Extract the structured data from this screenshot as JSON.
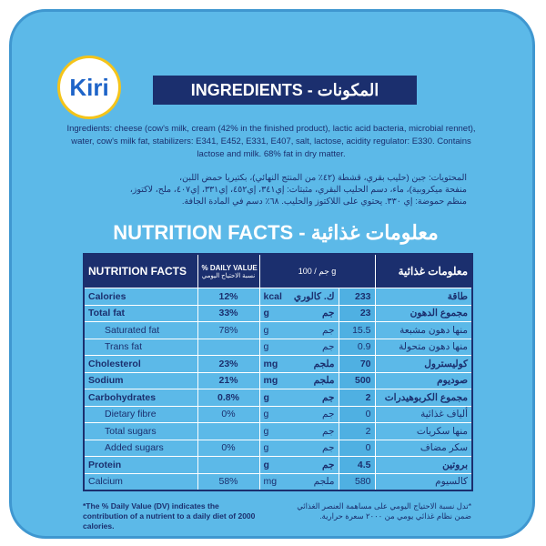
{
  "brand": "Kiri",
  "ingredients_heading": "INGREDIENTS - المكونات",
  "ingredients_en": "Ingredients: cheese (cow's milk, cream (42% in the finished product), lactic acid bacteria, microbial rennet), water, cow's milk fat, stabilizers: E341, E452, E331, E407, salt, lactose, acidity regulator: E330. Contains lactose and milk. 68% fat in dry matter.",
  "ingredients_ar": [
    "المحتويات: جبن (حليب بقري، قشطة (٤٢٪ من المنتج النهائي)، بكتيريا حمض اللبن،",
    "منفحة ميكروبية)، ماء، دسم الحليب البقري، مثبتات: إي٣٤١، إي٤٥٢، إي٣٣١، إي٤٠٧، ملح، لاكتوز،",
    "منظم حموضة: إي ٣٣٠. يحتوي على اللاكتوز والحليب. ٦٨٪ دسم في المادة الجافة."
  ],
  "nutrition_heading": "NUTRITION FACTS - معلومات غذائية",
  "table": {
    "header": {
      "name": "NUTRITION FACTS",
      "dv": "% DAILY VALUE",
      "dv_ar": "نسبة الاحتياج اليومي",
      "per": "جم / 100 g",
      "name_ar": "معلومات غذائية"
    },
    "rows": [
      [
        "Calories",
        "12%",
        "kcal",
        "ك. كالوري",
        233,
        "طاقة"
      ],
      [
        "Total fat",
        "33%",
        "g",
        "جم",
        23,
        "مجموع الدهون"
      ],
      [
        "Saturated fat",
        "78%",
        "g",
        "جم",
        15.5,
        "منها دهون مشبعة"
      ],
      [
        "Trans fat",
        null,
        "g",
        "جم",
        0.9,
        "منها دهون متحولة"
      ],
      [
        "Cholesterol",
        "23%",
        "mg",
        "ملجم",
        70,
        "كوليسترول"
      ],
      [
        "Sodium",
        "21%",
        "mg",
        "ملجم",
        500,
        "صوديوم"
      ],
      [
        "Carbohydrates",
        "0.8%",
        "g",
        "جم",
        2,
        "مجموع الكربوهيدرات"
      ],
      [
        "Dietary fibre",
        "0%",
        "g",
        "جم",
        0,
        "ألياف غذائية"
      ],
      [
        "Total sugars",
        null,
        "g",
        "جم",
        2,
        "منها سكريات"
      ],
      [
        "Added sugars",
        "0%",
        "g",
        "جم",
        0,
        "سكر مضاف"
      ],
      [
        "Protein",
        null,
        "g",
        "جم",
        4.5,
        "بروتين"
      ],
      [
        "Calcium",
        "58%",
        "mg",
        "ملجم",
        580,
        "كالسيوم"
      ]
    ]
  },
  "footnote_en": "*The % Daily Value (DV) indicates the contribution of a nutrient to a daily diet of 2000 calories.",
  "footnote_ar": "*تدل نسبة الاحتياج اليومي على مساهمة العنصر الغذائي ضمن نظام غذائي يومي من ٢٠٠٠ سعرة حرارية."
}
